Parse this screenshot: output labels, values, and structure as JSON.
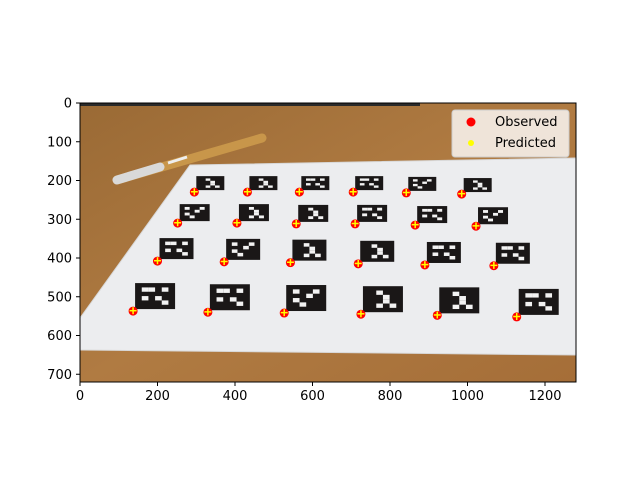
{
  "chart_data": {
    "type": "scatter",
    "title": "",
    "xlabel": "",
    "ylabel": "",
    "xlim": [
      0,
      1280
    ],
    "ylim": [
      720,
      0
    ],
    "x_ticks": [
      "0",
      "200",
      "400",
      "600",
      "800",
      "1000",
      "1200"
    ],
    "y_ticks": [
      "0",
      "100",
      "200",
      "300",
      "400",
      "500",
      "600",
      "700"
    ],
    "legend_position": "top-right",
    "background_image": "photo of calibration board with 24 square fiducial markers and a pen on a wooden table",
    "series": [
      {
        "name": "Observed",
        "color": "#ff0000",
        "marker": "circle",
        "points": [
          [
            295,
            230
          ],
          [
            432,
            230
          ],
          [
            566,
            230
          ],
          [
            705,
            230
          ],
          [
            842,
            232
          ],
          [
            985,
            235
          ],
          [
            252,
            310
          ],
          [
            405,
            310
          ],
          [
            558,
            312
          ],
          [
            710,
            312
          ],
          [
            865,
            315
          ],
          [
            1022,
            318
          ],
          [
            200,
            408
          ],
          [
            372,
            410
          ],
          [
            543,
            412
          ],
          [
            718,
            415
          ],
          [
            890,
            418
          ],
          [
            1068,
            420
          ],
          [
            137,
            537
          ],
          [
            330,
            540
          ],
          [
            527,
            542
          ],
          [
            725,
            545
          ],
          [
            922,
            548
          ],
          [
            1127,
            552
          ]
        ]
      },
      {
        "name": "Predicted",
        "color": "#ffff00",
        "marker": "plus",
        "points": [
          [
            295,
            229
          ],
          [
            432,
            229
          ],
          [
            566,
            229
          ],
          [
            705,
            229
          ],
          [
            842,
            231
          ],
          [
            985,
            234
          ],
          [
            252,
            309
          ],
          [
            405,
            309
          ],
          [
            558,
            311
          ],
          [
            710,
            311
          ],
          [
            865,
            314
          ],
          [
            1022,
            317
          ],
          [
            200,
            407
          ],
          [
            372,
            409
          ],
          [
            543,
            411
          ],
          [
            718,
            414
          ],
          [
            890,
            417
          ],
          [
            1068,
            419
          ],
          [
            137,
            536
          ],
          [
            330,
            539
          ],
          [
            527,
            541
          ],
          [
            725,
            544
          ],
          [
            922,
            547
          ],
          [
            1127,
            551
          ]
        ]
      }
    ]
  }
}
